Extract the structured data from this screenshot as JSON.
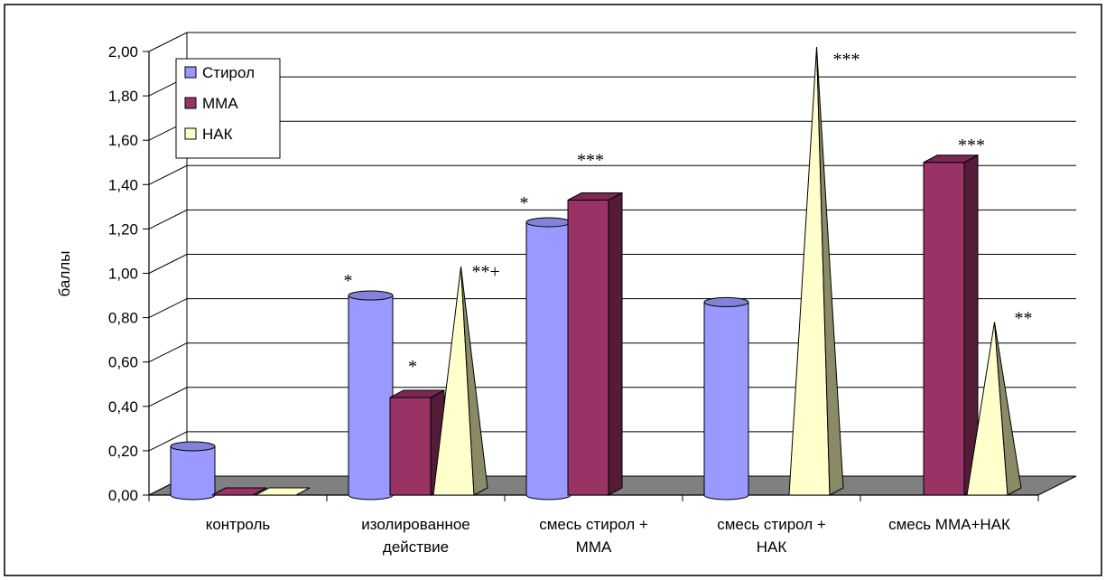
{
  "chart_data": {
    "type": "bar",
    "ylabel": "баллы",
    "ylim": [
      0,
      2.0
    ],
    "yticks": [
      "0,00",
      "0,20",
      "0,40",
      "0,60",
      "0,80",
      "1,00",
      "1,20",
      "1,40",
      "1,60",
      "1,80",
      "2,00"
    ],
    "categories": [
      [
        "контроль"
      ],
      [
        "изолированное",
        "действие"
      ],
      [
        "смесь стирол +",
        "ММА"
      ],
      [
        "смесь стирол +",
        "НАК"
      ],
      [
        "смесь ММА+НАК"
      ]
    ],
    "series": [
      {
        "name": "Стирол",
        "shape": "cylinder",
        "color": "#9999ff",
        "values": [
          0.22,
          0.9,
          1.23,
          0.87,
          null
        ]
      },
      {
        "name": "ММА",
        "shape": "box",
        "color": "#993366",
        "values": [
          0.0,
          0.44,
          1.33,
          null,
          1.5
        ]
      },
      {
        "name": "НАК",
        "shape": "pyramid",
        "color": "#ffffcc",
        "values": [
          0.0,
          1.03,
          null,
          2.02,
          0.78
        ]
      }
    ],
    "annotations": [
      {
        "text": "*",
        "category": 1,
        "series": 0
      },
      {
        "text": "*",
        "category": 1,
        "series": 1
      },
      {
        "text": "**+",
        "category": 1,
        "series": 2
      },
      {
        "text": "*",
        "category": 2,
        "series": 0
      },
      {
        "text": "***",
        "category": 2,
        "series": 1
      },
      {
        "text": "***",
        "category": 3,
        "series": 2
      },
      {
        "text": "***",
        "category": 4,
        "series": 1
      },
      {
        "text": "**",
        "category": 4,
        "series": 2
      }
    ],
    "legend": {
      "placement": "top-left"
    },
    "grid": true,
    "floor_color": "#808080"
  }
}
